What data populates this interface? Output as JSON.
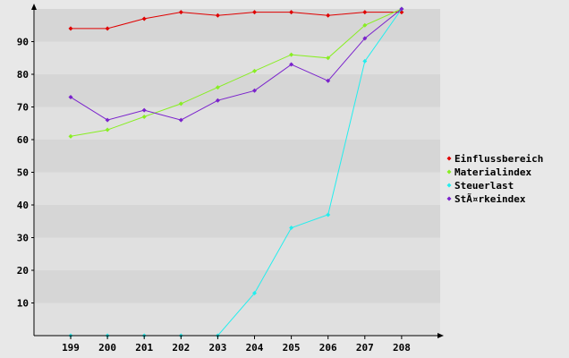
{
  "chart_data": {
    "type": "line",
    "x": [
      "199",
      "200",
      "201",
      "202",
      "203",
      "204",
      "205",
      "206",
      "207",
      "208"
    ],
    "ylim": [
      0,
      100
    ],
    "yticks": [
      10,
      20,
      30,
      40,
      50,
      60,
      70,
      80,
      90
    ],
    "grid": "horizontal bands",
    "legend_position": "right",
    "series": [
      {
        "name": "Einflussbereich",
        "color": "#e00000",
        "values": [
          94,
          94,
          97,
          99,
          98,
          99,
          99,
          98,
          99,
          99
        ]
      },
      {
        "name": "Materialindex",
        "color": "#88ee22",
        "values": [
          61,
          63,
          67,
          71,
          76,
          81,
          86,
          85,
          95,
          100
        ]
      },
      {
        "name": "Steuerlast",
        "color": "#22eeee",
        "values": [
          0,
          0,
          0,
          0,
          0,
          13,
          33,
          37,
          84,
          100
        ]
      },
      {
        "name": "StÃ¤rkeindex",
        "color": "#7a22cc",
        "values": [
          73,
          66,
          69,
          66,
          72,
          75,
          83,
          78,
          91,
          100
        ]
      }
    ]
  }
}
